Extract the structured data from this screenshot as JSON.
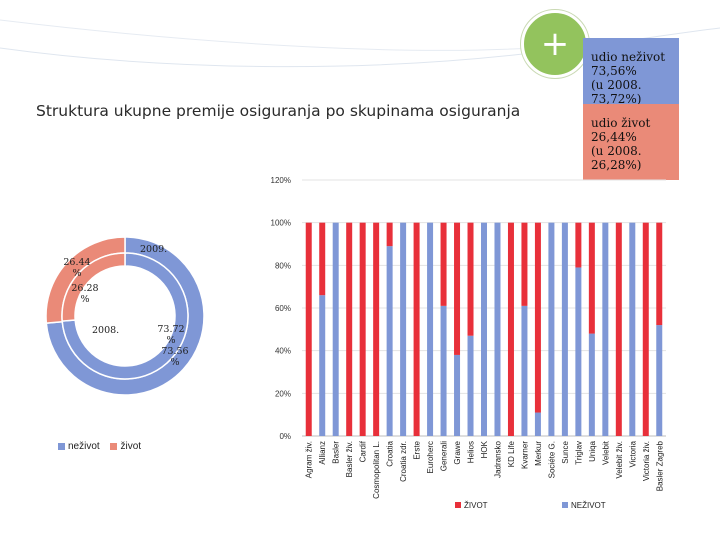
{
  "header": {
    "title": "Struktura ukupne premije osiguranja po skupinama osiguranja",
    "add_icon": "plus-icon"
  },
  "info_boxes": {
    "nezivot": {
      "line1": "udio neživot",
      "line2": "73,56%",
      "line3": "(u 2008. 73,72%)",
      "color": "#7f97d6"
    },
    "zivot": {
      "line1": "udio život",
      "line2": "26,44%",
      "line3": "(u 2008.",
      "line4": "26,28%)",
      "color": "#ea8a78"
    }
  },
  "donut": {
    "outer_label": "2009.",
    "inner_label": "2008.",
    "zivot_outer": "26.44 %",
    "zivot_inner": "26.28 %",
    "nezivot_inner": "73.72 %",
    "nezivot_outer": "73.56 %",
    "legend_nezivot": "neživot",
    "legend_zivot": "život",
    "color_nezivot": "#7f97d6",
    "color_zivot": "#ea8a78"
  },
  "chart_data": [
    {
      "type": "pie",
      "title": "",
      "series": [
        {
          "name": "2009.",
          "values": [
            73.56,
            26.44
          ]
        },
        {
          "name": "2008.",
          "values": [
            73.72,
            26.28
          ]
        }
      ],
      "categories": [
        "neživot",
        "život"
      ],
      "legend": "bottom-left"
    },
    {
      "type": "bar",
      "stacked": true,
      "title": "",
      "categories": [
        "Agram živ.",
        "Allianz",
        "Basler",
        "Basler živ.",
        "Cardif",
        "Cosmopolitan L.",
        "Croatia",
        "Croatia zdr.",
        "Erste",
        "Euroherc",
        "Generali",
        "Grawe",
        "Helios",
        "HOK",
        "Jadransko",
        "KD Life",
        "Kvarner",
        "Merkur",
        "Sociéte G.",
        "Sunce",
        "Triglav",
        "Uniqa",
        "Velebit",
        "Velebit živ.",
        "Victoria",
        "Victoria živ.",
        "Basler Zagreb"
      ],
      "series": [
        {
          "name": "NEŽIVOT",
          "color": "#7f97d6",
          "values": [
            0,
            66,
            100,
            0,
            0,
            0,
            89,
            100,
            0,
            100,
            61,
            38,
            47,
            100,
            100,
            0,
            61,
            11,
            100,
            100,
            79,
            48,
            100,
            0,
            100,
            0,
            52
          ]
        },
        {
          "name": "ŽIVOT",
          "color": "#e8303a",
          "values": [
            100,
            34,
            0,
            100,
            100,
            100,
            11,
            0,
            100,
            0,
            39,
            62,
            53,
            0,
            0,
            100,
            39,
            89,
            0,
            0,
            21,
            52,
            0,
            100,
            0,
            100,
            48
          ]
        }
      ],
      "y_ticks": [
        "0%",
        "20%",
        "40%",
        "60%",
        "80%",
        "100%",
        "120%"
      ],
      "ylim": [
        0,
        120
      ],
      "legend": "bottom"
    }
  ]
}
